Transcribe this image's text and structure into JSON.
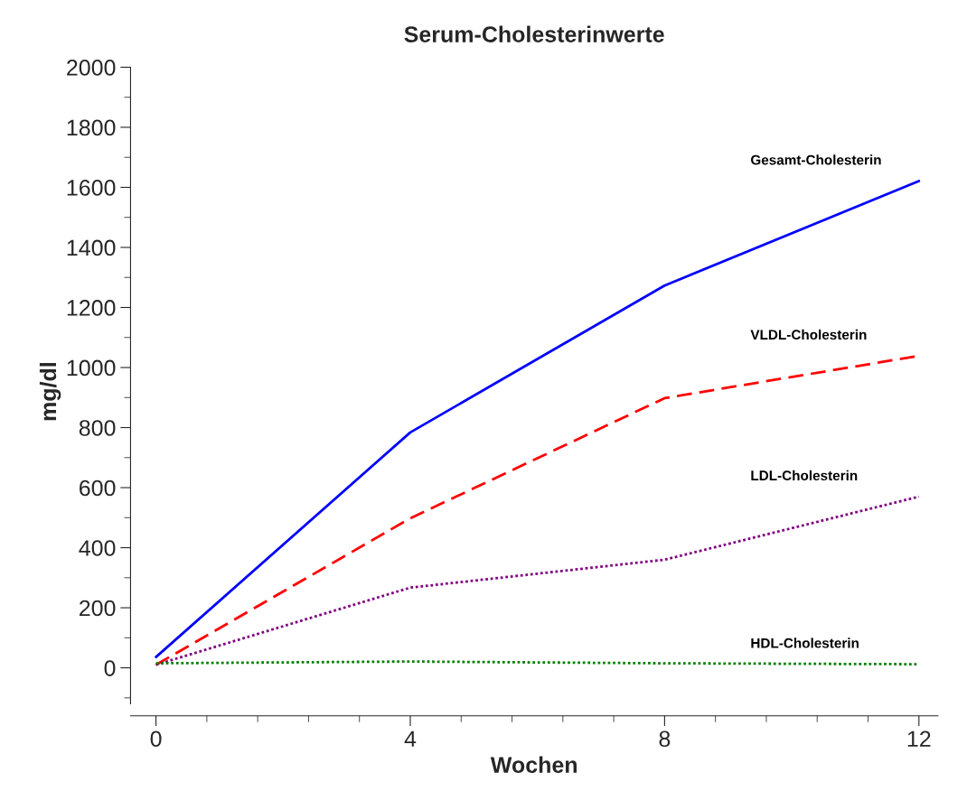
{
  "chart_data": {
    "type": "line",
    "title": "Serum-Cholesterinwerte",
    "xlabel": "Wochen",
    "ylabel": "mg/dl",
    "x": [
      0,
      4,
      8,
      12
    ],
    "series": [
      {
        "name": "Gesamt-Cholesterin",
        "color": "#0000ff",
        "line_style": "solid",
        "values": [
          36,
          784,
          1273,
          1621
        ]
      },
      {
        "name": "VLDL-Cholesterin",
        "color": "#ff0000",
        "line_style": "dashed",
        "values": [
          10,
          498,
          898,
          1039
        ]
      },
      {
        "name": "LDL-Cholesterin",
        "color": "#800080",
        "line_style": "dotted",
        "values": [
          10,
          267,
          360,
          570
        ]
      },
      {
        "name": "HDL-Cholesterin",
        "color": "#008000",
        "line_style": "dotted",
        "values": [
          15,
          21,
          15,
          12
        ]
      }
    ],
    "xlim": [
      -0.4,
      12.3
    ],
    "ylim": [
      -160,
      2000
    ],
    "xticks": [
      0,
      4,
      8,
      12
    ],
    "yticks": [
      0,
      200,
      400,
      600,
      800,
      1000,
      1200,
      1400,
      1600,
      1800,
      2000
    ],
    "grid": false,
    "legend": false,
    "marker": "none"
  }
}
